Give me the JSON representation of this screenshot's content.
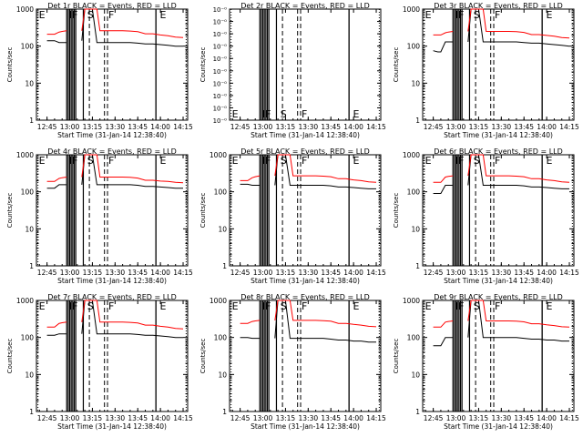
{
  "colors": {
    "events": "#000000",
    "lld": "#ff0000",
    "axes": "#000000",
    "background": "#ffffff"
  },
  "shared_axes": {
    "ylabel": "Counts/sec",
    "xlabel": "Start Time (31-Jan-14 12:38:40)",
    "x_ticks": [
      "12:45",
      "13:00",
      "13:15",
      "13:30",
      "13:45",
      "14:00",
      "14:15"
    ],
    "y_ticks": [
      "1",
      "10",
      "100",
      "1000"
    ],
    "y_ticks_empty": [
      "10⁻⁰",
      "10⁻⁰",
      "10⁻⁰",
      "10⁻⁰",
      "10⁻⁰",
      "10⁻⁰",
      "10⁻⁰",
      "10⁻⁰",
      "10⁻⁰",
      "10⁻⁰"
    ]
  },
  "chart_data": [
    {
      "type": "line",
      "title": "Det 1r BLACK = Events, RED = LLD",
      "yscale": "log",
      "ylim": [
        1,
        1000
      ],
      "x": [
        "12:45",
        "12:48",
        "12:50",
        "12:53",
        "12:55",
        "12:58",
        "13:00",
        "13:03",
        "13:05",
        "13:08",
        "13:10",
        "13:13",
        "13:15",
        "13:18",
        "13:20",
        "13:25",
        "13:30",
        "13:35",
        "13:40",
        "13:45",
        "13:50",
        "13:55",
        "14:00",
        "14:05",
        "14:10",
        "14:15"
      ],
      "series": [
        {
          "name": "Events",
          "values": [
            140,
            140,
            140,
            125,
            125,
            125,
            null,
            null,
            null,
            140,
            1000,
            1000,
            1000,
            125,
            125,
            125,
            125,
            125,
            125,
            120,
            115,
            115,
            110,
            105,
            100,
            100
          ]
        },
        {
          "name": "LLD",
          "values": [
            210,
            210,
            210,
            240,
            250,
            260,
            null,
            null,
            null,
            260,
            1000,
            1000,
            1000,
            1000,
            260,
            260,
            260,
            260,
            255,
            245,
            215,
            215,
            200,
            190,
            175,
            170
          ]
        }
      ],
      "markers": [
        "E",
        "IF",
        "S",
        "F",
        "E"
      ]
    },
    {
      "type": "line",
      "title": "Det 2r BLACK = Events, RED = LLD",
      "yscale": "log",
      "y_tick_labels": [
        "10⁻⁰",
        "10⁻⁰",
        "10⁻⁰",
        "10⁻⁰",
        "10⁻⁰",
        "10⁻⁰",
        "10⁻⁰",
        "10⁻⁰",
        "10⁻⁰",
        "10⁻⁰"
      ],
      "series": [],
      "markers": [
        "E",
        "IF",
        "S",
        "F",
        "E"
      ]
    },
    {
      "type": "line",
      "title": "Det 3r BLACK = Events, RED = LLD",
      "yscale": "log",
      "ylim": [
        1,
        1000
      ],
      "x": [
        "12:45",
        "12:48",
        "12:50",
        "12:53",
        "12:55",
        "12:58",
        "13:00",
        "13:03",
        "13:05",
        "13:08",
        "13:10",
        "13:13",
        "13:15",
        "13:18",
        "13:20",
        "13:25",
        "13:30",
        "13:35",
        "13:40",
        "13:45",
        "13:50",
        "13:55",
        "14:00",
        "14:05",
        "14:10",
        "14:15"
      ],
      "series": [
        {
          "name": "Events",
          "values": [
            75,
            70,
            70,
            130,
            130,
            130,
            null,
            null,
            null,
            130,
            1000,
            1000,
            1000,
            130,
            130,
            130,
            130,
            130,
            130,
            125,
            120,
            120,
            115,
            110,
            105,
            100
          ]
        },
        {
          "name": "LLD",
          "values": [
            200,
            200,
            200,
            230,
            240,
            250,
            null,
            null,
            null,
            250,
            1000,
            1000,
            1000,
            1000,
            250,
            250,
            250,
            250,
            245,
            235,
            205,
            205,
            195,
            185,
            170,
            165
          ]
        }
      ],
      "markers": [
        "E",
        "IF",
        "S",
        "F",
        "E"
      ]
    },
    {
      "type": "line",
      "title": "Det 4r BLACK = Events, RED = LLD",
      "yscale": "log",
      "ylim": [
        1,
        1000
      ],
      "x": [
        "12:45",
        "12:48",
        "12:50",
        "12:53",
        "12:55",
        "12:58",
        "13:00",
        "13:03",
        "13:05",
        "13:08",
        "13:10",
        "13:13",
        "13:15",
        "13:18",
        "13:20",
        "13:25",
        "13:30",
        "13:35",
        "13:40",
        "13:45",
        "13:50",
        "13:55",
        "14:00",
        "14:05",
        "14:10",
        "14:15"
      ],
      "series": [
        {
          "name": "Events",
          "values": [
            125,
            125,
            125,
            155,
            155,
            155,
            null,
            null,
            null,
            155,
            1000,
            1000,
            1000,
            155,
            155,
            155,
            155,
            155,
            155,
            150,
            140,
            140,
            135,
            130,
            125,
            125
          ]
        },
        {
          "name": "LLD",
          "values": [
            190,
            190,
            190,
            230,
            240,
            250,
            null,
            null,
            null,
            250,
            1000,
            1000,
            1000,
            1000,
            250,
            250,
            250,
            250,
            245,
            235,
            205,
            205,
            195,
            190,
            180,
            175
          ]
        }
      ],
      "markers": [
        "E",
        "IF",
        "S",
        "F",
        "E"
      ]
    },
    {
      "type": "line",
      "title": "Det 5r BLACK = Events, RED = LLD",
      "yscale": "log",
      "ylim": [
        1,
        1000
      ],
      "x": [
        "12:45",
        "12:48",
        "12:50",
        "12:53",
        "12:55",
        "12:58",
        "13:00",
        "13:03",
        "13:05",
        "13:08",
        "13:10",
        "13:13",
        "13:15",
        "13:18",
        "13:20",
        "13:25",
        "13:30",
        "13:35",
        "13:40",
        "13:45",
        "13:50",
        "13:55",
        "14:00",
        "14:05",
        "14:10",
        "14:15"
      ],
      "series": [
        {
          "name": "Events",
          "values": [
            160,
            160,
            160,
            150,
            150,
            150,
            null,
            null,
            null,
            150,
            1000,
            1000,
            1000,
            150,
            150,
            150,
            150,
            150,
            150,
            145,
            135,
            135,
            130,
            125,
            120,
            120
          ]
        },
        {
          "name": "LLD",
          "values": [
            200,
            200,
            200,
            240,
            255,
            270,
            null,
            null,
            null,
            270,
            1000,
            1000,
            1000,
            1000,
            270,
            270,
            270,
            270,
            265,
            255,
            225,
            225,
            210,
            200,
            185,
            180
          ]
        }
      ],
      "markers": [
        "E",
        "IF",
        "S",
        "F",
        "E"
      ]
    },
    {
      "type": "line",
      "title": "Det 6r BLACK = Events, RED = LLD",
      "yscale": "log",
      "ylim": [
        1,
        1000
      ],
      "x": [
        "12:45",
        "12:48",
        "12:50",
        "12:53",
        "12:55",
        "12:58",
        "13:00",
        "13:03",
        "13:05",
        "13:08",
        "13:10",
        "13:13",
        "13:15",
        "13:18",
        "13:20",
        "13:25",
        "13:30",
        "13:35",
        "13:40",
        "13:45",
        "13:50",
        "13:55",
        "14:00",
        "14:05",
        "14:10",
        "14:15"
      ],
      "series": [
        {
          "name": "Events",
          "values": [
            90,
            90,
            90,
            150,
            150,
            150,
            null,
            null,
            null,
            150,
            1000,
            1000,
            1000,
            150,
            150,
            150,
            150,
            150,
            150,
            145,
            135,
            135,
            130,
            125,
            120,
            120
          ]
        },
        {
          "name": "LLD",
          "values": [
            180,
            180,
            180,
            250,
            260,
            270,
            null,
            null,
            null,
            270,
            1000,
            1000,
            1000,
            1000,
            270,
            270,
            270,
            270,
            265,
            255,
            225,
            225,
            210,
            200,
            185,
            180
          ]
        }
      ],
      "markers": [
        "E",
        "IF",
        "S",
        "F",
        "E"
      ]
    },
    {
      "type": "line",
      "title": "Det 7r BLACK = Events, RED = LLD",
      "yscale": "log",
      "ylim": [
        1,
        1000
      ],
      "x": [
        "12:45",
        "12:48",
        "12:50",
        "12:53",
        "12:55",
        "12:58",
        "13:00",
        "13:03",
        "13:05",
        "13:08",
        "13:10",
        "13:13",
        "13:15",
        "13:18",
        "13:20",
        "13:25",
        "13:30",
        "13:35",
        "13:40",
        "13:45",
        "13:50",
        "13:55",
        "14:00",
        "14:05",
        "14:10",
        "14:15"
      ],
      "series": [
        {
          "name": "Events",
          "values": [
            115,
            115,
            115,
            125,
            125,
            125,
            null,
            null,
            null,
            125,
            1000,
            1000,
            1000,
            125,
            125,
            125,
            125,
            125,
            125,
            120,
            115,
            115,
            110,
            105,
            100,
            100
          ]
        },
        {
          "name": "LLD",
          "values": [
            190,
            190,
            190,
            240,
            250,
            260,
            null,
            null,
            null,
            260,
            1000,
            1000,
            1000,
            1000,
            260,
            260,
            260,
            260,
            255,
            245,
            215,
            215,
            200,
            190,
            175,
            170
          ]
        }
      ],
      "markers": [
        "E",
        "IF",
        "S",
        "F",
        "E"
      ]
    },
    {
      "type": "line",
      "title": "Det 8r BLACK = Events, RED = LLD",
      "yscale": "log",
      "ylim": [
        1,
        1000
      ],
      "x": [
        "12:45",
        "12:48",
        "12:50",
        "12:53",
        "12:55",
        "12:58",
        "13:00",
        "13:03",
        "13:05",
        "13:08",
        "13:10",
        "13:13",
        "13:15",
        "13:18",
        "13:20",
        "13:25",
        "13:30",
        "13:35",
        "13:40",
        "13:45",
        "13:50",
        "13:55",
        "14:00",
        "14:05",
        "14:10",
        "14:15"
      ],
      "series": [
        {
          "name": "Events",
          "values": [
            100,
            100,
            100,
            95,
            95,
            95,
            null,
            null,
            null,
            95,
            1000,
            1000,
            1000,
            95,
            95,
            95,
            95,
            95,
            95,
            90,
            85,
            85,
            80,
            80,
            75,
            75
          ]
        },
        {
          "name": "LLD",
          "values": [
            240,
            240,
            240,
            270,
            280,
            290,
            null,
            null,
            null,
            290,
            1000,
            1000,
            1000,
            1000,
            290,
            290,
            290,
            290,
            285,
            275,
            240,
            240,
            225,
            215,
            200,
            195
          ]
        }
      ],
      "markers": [
        "E",
        "IF",
        "S",
        "F",
        "E"
      ]
    },
    {
      "type": "line",
      "title": "Det 9r BLACK = Events, RED = LLD",
      "yscale": "log",
      "ylim": [
        1,
        1000
      ],
      "x": [
        "12:45",
        "12:48",
        "12:50",
        "12:53",
        "12:55",
        "12:58",
        "13:00",
        "13:03",
        "13:05",
        "13:08",
        "13:10",
        "13:13",
        "13:15",
        "13:18",
        "13:20",
        "13:25",
        "13:30",
        "13:35",
        "13:40",
        "13:45",
        "13:50",
        "13:55",
        "14:00",
        "14:05",
        "14:10",
        "14:15"
      ],
      "series": [
        {
          "name": "Events",
          "values": [
            60,
            60,
            60,
            100,
            100,
            100,
            null,
            null,
            null,
            100,
            1000,
            1000,
            1000,
            100,
            100,
            100,
            100,
            100,
            100,
            95,
            90,
            90,
            85,
            85,
            80,
            80
          ]
        },
        {
          "name": "LLD",
          "values": [
            190,
            190,
            190,
            260,
            270,
            280,
            null,
            null,
            null,
            280,
            1000,
            1000,
            1000,
            1000,
            280,
            280,
            280,
            280,
            275,
            265,
            235,
            235,
            220,
            210,
            195,
            190
          ]
        }
      ],
      "markers": [
        "E",
        "IF",
        "S",
        "F",
        "E"
      ]
    }
  ]
}
